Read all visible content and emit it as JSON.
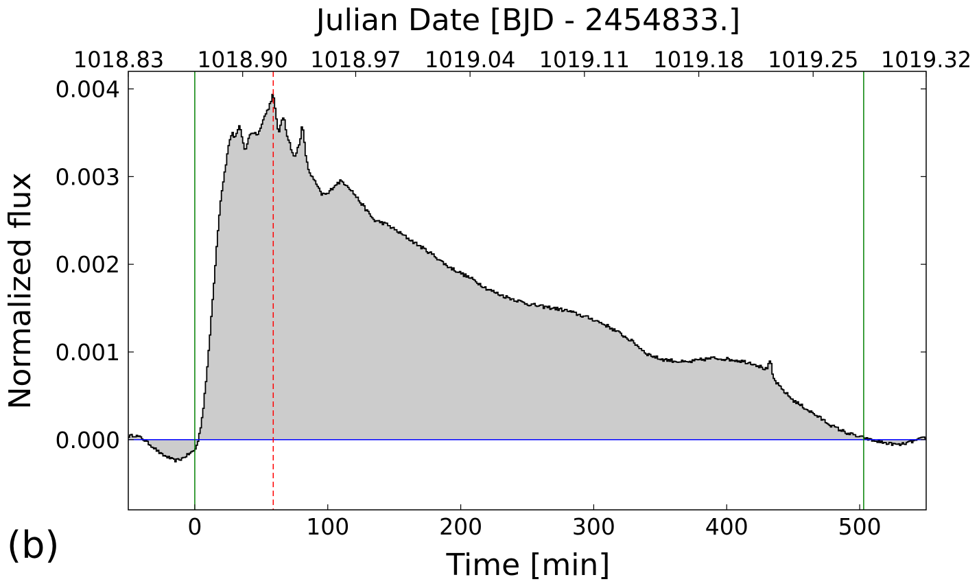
{
  "panel_label": "(b)",
  "chart_data": {
    "type": "area",
    "step": true,
    "xlabel": "Time [min]",
    "ylabel": "Normalized flux",
    "top_xlabel": "Julian Date [BJD - 2454833.]",
    "xlim": [
      -50,
      550
    ],
    "ylim": [
      -0.0008,
      0.0042
    ],
    "xticks": [
      0,
      100,
      200,
      300,
      400,
      500
    ],
    "xtick_labels": [
      "0",
      "100",
      "200",
      "300",
      "400",
      "500"
    ],
    "yticks": [
      0.0,
      0.001,
      0.002,
      0.003,
      0.004
    ],
    "ytick_labels": [
      "0.000",
      "0.001",
      "0.002",
      "0.003",
      "0.004"
    ],
    "top_xtick_labels": [
      "1018.83",
      "1018.90",
      "1018.97",
      "1019.04",
      "1019.11",
      "1019.18",
      "1019.25",
      "1019.32"
    ],
    "top_xticks_min": [
      -50,
      36,
      121,
      207,
      293,
      379,
      465,
      550
    ],
    "baseline": 0.0,
    "flare_start_min": 0,
    "flare_end_min": 503,
    "flare_peak_min": 59,
    "colors": {
      "fill": "#cccccc",
      "line": "#000000",
      "baseline": "#0000ff",
      "bounds": "#008000",
      "peak": "#ff0000"
    },
    "anchors": [
      [
        -50,
        4e-05
      ],
      [
        -45,
        5e-05
      ],
      [
        -40,
        2e-05
      ],
      [
        -35,
        -4e-05
      ],
      [
        -30,
        -0.0001
      ],
      [
        -25,
        -0.00017
      ],
      [
        -20,
        -0.0002
      ],
      [
        -15,
        -0.00024
      ],
      [
        -10,
        -0.00022
      ],
      [
        -5,
        -0.00017
      ],
      [
        0,
        -0.00012
      ],
      [
        2,
        -5e-05
      ],
      [
        4,
        0.0001
      ],
      [
        6,
        0.0003
      ],
      [
        8,
        0.0006
      ],
      [
        10,
        0.0009
      ],
      [
        12,
        0.0013
      ],
      [
        14,
        0.0017
      ],
      [
        16,
        0.0021
      ],
      [
        18,
        0.0025
      ],
      [
        20,
        0.0028
      ],
      [
        22,
        0.003
      ],
      [
        24,
        0.0032
      ],
      [
        26,
        0.0034
      ],
      [
        28,
        0.0035
      ],
      [
        30,
        0.00345
      ],
      [
        32,
        0.0035
      ],
      [
        34,
        0.00358
      ],
      [
        36,
        0.0034
      ],
      [
        38,
        0.0033
      ],
      [
        40,
        0.0034
      ],
      [
        42,
        0.0035
      ],
      [
        45,
        0.0035
      ],
      [
        48,
        0.00348
      ],
      [
        50,
        0.0036
      ],
      [
        53,
        0.0037
      ],
      [
        56,
        0.0038
      ],
      [
        58,
        0.0039
      ],
      [
        59,
        0.00395
      ],
      [
        61,
        0.0037
      ],
      [
        63,
        0.0035
      ],
      [
        65,
        0.0036
      ],
      [
        67,
        0.0037
      ],
      [
        69,
        0.0035
      ],
      [
        71,
        0.0034
      ],
      [
        73,
        0.0033
      ],
      [
        75,
        0.0032
      ],
      [
        77,
        0.0033
      ],
      [
        79,
        0.0034
      ],
      [
        81,
        0.0036
      ],
      [
        83,
        0.0033
      ],
      [
        85,
        0.0031
      ],
      [
        88,
        0.003
      ],
      [
        92,
        0.0029
      ],
      [
        95,
        0.0028
      ],
      [
        100,
        0.0028
      ],
      [
        105,
        0.0029
      ],
      [
        110,
        0.00295
      ],
      [
        115,
        0.0029
      ],
      [
        120,
        0.0028
      ],
      [
        125,
        0.0027
      ],
      [
        130,
        0.0026
      ],
      [
        135,
        0.0025
      ],
      [
        140,
        0.00248
      ],
      [
        145,
        0.00245
      ],
      [
        150,
        0.0024
      ],
      [
        160,
        0.0023
      ],
      [
        170,
        0.0022
      ],
      [
        180,
        0.0021
      ],
      [
        190,
        0.00198
      ],
      [
        200,
        0.0019
      ],
      [
        210,
        0.00182
      ],
      [
        220,
        0.00172
      ],
      [
        230,
        0.00165
      ],
      [
        240,
        0.0016
      ],
      [
        250,
        0.00155
      ],
      [
        260,
        0.00152
      ],
      [
        270,
        0.0015
      ],
      [
        280,
        0.00147
      ],
      [
        290,
        0.00142
      ],
      [
        300,
        0.00137
      ],
      [
        310,
        0.0013
      ],
      [
        320,
        0.00121
      ],
      [
        330,
        0.00111
      ],
      [
        340,
        0.00098
      ],
      [
        350,
        0.00092
      ],
      [
        360,
        0.0009
      ],
      [
        370,
        0.00088
      ],
      [
        380,
        0.00091
      ],
      [
        390,
        0.00093
      ],
      [
        400,
        0.00092
      ],
      [
        410,
        0.0009
      ],
      [
        420,
        0.00087
      ],
      [
        430,
        0.0008
      ],
      [
        433,
        0.0009
      ],
      [
        435,
        0.0007
      ],
      [
        440,
        0.0006
      ],
      [
        450,
        0.00045
      ],
      [
        460,
        0.00035
      ],
      [
        470,
        0.00025
      ],
      [
        480,
        0.00015
      ],
      [
        490,
        8e-05
      ],
      [
        500,
        3e-05
      ],
      [
        503,
        2e-05
      ],
      [
        510,
        -1e-05
      ],
      [
        520,
        -4e-05
      ],
      [
        530,
        -6e-05
      ],
      [
        540,
        -2e-05
      ],
      [
        550,
        3e-05
      ]
    ],
    "noise_amplitude": 4e-05
  }
}
